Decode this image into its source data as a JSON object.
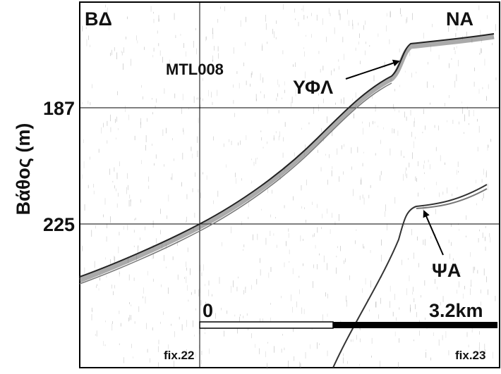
{
  "labels": {
    "northwest": "ΒΔ",
    "southeast": "ΝΑ",
    "line": "MTL008",
    "upper": "ΥΦΛ",
    "lower": "ΨΑ"
  },
  "axis": {
    "title": "Βάθος (m)",
    "ticks": [
      187,
      225
    ]
  },
  "scale_bar": {
    "start": "0",
    "end": "3.2km"
  },
  "fixes": [
    "fix.22",
    "fix.23"
  ]
}
